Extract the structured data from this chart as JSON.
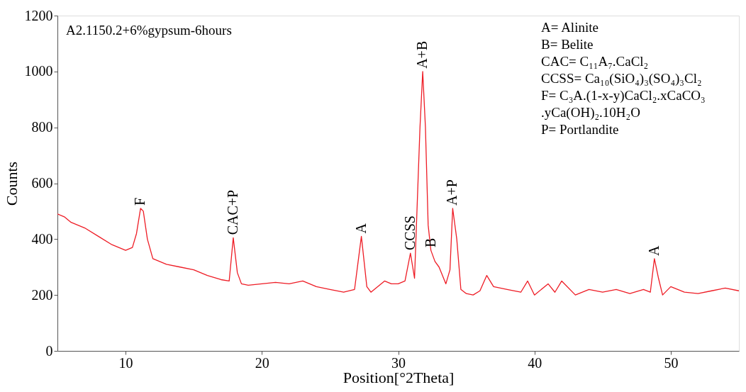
{
  "chart_data": {
    "type": "line",
    "title": "A2.1150.2+6%gypsum-6hours",
    "xlabel": "Position[°2Theta]",
    "ylabel": "Counts",
    "xlim": [
      5,
      55
    ],
    "ylim": [
      0,
      1200
    ],
    "xticks": [
      10,
      20,
      30,
      40,
      50
    ],
    "yticks": [
      0,
      200,
      400,
      600,
      800,
      1000,
      1200
    ],
    "grid": false,
    "marker": "none",
    "line_style": "solid",
    "x": [
      5,
      5.5,
      6,
      7,
      8,
      9,
      10,
      10.5,
      10.8,
      11.1,
      11.3,
      11.6,
      12,
      13,
      14,
      15,
      16,
      17,
      17.6,
      17.9,
      18.2,
      18.5,
      19,
      20,
      21,
      22,
      23,
      24,
      25,
      26,
      26.8,
      27.3,
      27.7,
      28,
      29,
      29.5,
      30,
      30.5,
      30.9,
      31.2,
      31.6,
      31.8,
      32.0,
      32.2,
      32.4,
      32.7,
      33,
      33.5,
      33.8,
      34.0,
      34.3,
      34.6,
      35,
      35.5,
      36,
      36.5,
      37,
      38,
      39,
      39.5,
      40,
      41,
      41.5,
      42,
      43,
      44,
      45,
      46,
      47,
      48,
      48.5,
      48.8,
      49.1,
      49.4,
      50,
      51,
      52,
      53,
      54,
      55
    ],
    "series": [
      {
        "color": "#ee1c25",
        "values": [
          490,
          480,
          460,
          440,
          410,
          380,
          360,
          370,
          420,
          510,
          500,
          400,
          330,
          310,
          300,
          290,
          270,
          255,
          250,
          405,
          280,
          240,
          235,
          240,
          245,
          240,
          250,
          230,
          220,
          210,
          220,
          410,
          230,
          210,
          250,
          240,
          240,
          250,
          350,
          260,
          800,
          1000,
          800,
          450,
          360,
          320,
          300,
          240,
          290,
          510,
          400,
          220,
          205,
          200,
          215,
          270,
          230,
          220,
          210,
          250,
          200,
          240,
          210,
          250,
          200,
          220,
          210,
          220,
          205,
          220,
          210,
          330,
          260,
          200,
          230,
          210,
          205,
          215,
          225,
          215
        ]
      }
    ],
    "annotations": [
      {
        "text": "F",
        "x": 11.1,
        "y": 510
      },
      {
        "text": "CAC+P",
        "x": 17.9,
        "y": 405
      },
      {
        "text": "A",
        "x": 27.3,
        "y": 410
      },
      {
        "text": "CCSS",
        "x": 30.9,
        "y": 350
      },
      {
        "text": "A+B",
        "x": 31.8,
        "y": 1000
      },
      {
        "text": "B",
        "x": 32.4,
        "y": 360
      },
      {
        "text": "A+P",
        "x": 34.0,
        "y": 510
      },
      {
        "text": "A",
        "x": 48.8,
        "y": 330
      },
      "A= Alinite",
      "B= Belite",
      "CAC= C₁₁A₇.CaCl₂",
      "CCSS= Ca₁₀(SiO₄)₃(SO₄)₃Cl₂",
      "F= C₃A.(1-x-y)CaCl₂.xCaCO₃",
      "    .yCa(OH)₂.10H₂O",
      "P= Portlandite"
    ]
  }
}
